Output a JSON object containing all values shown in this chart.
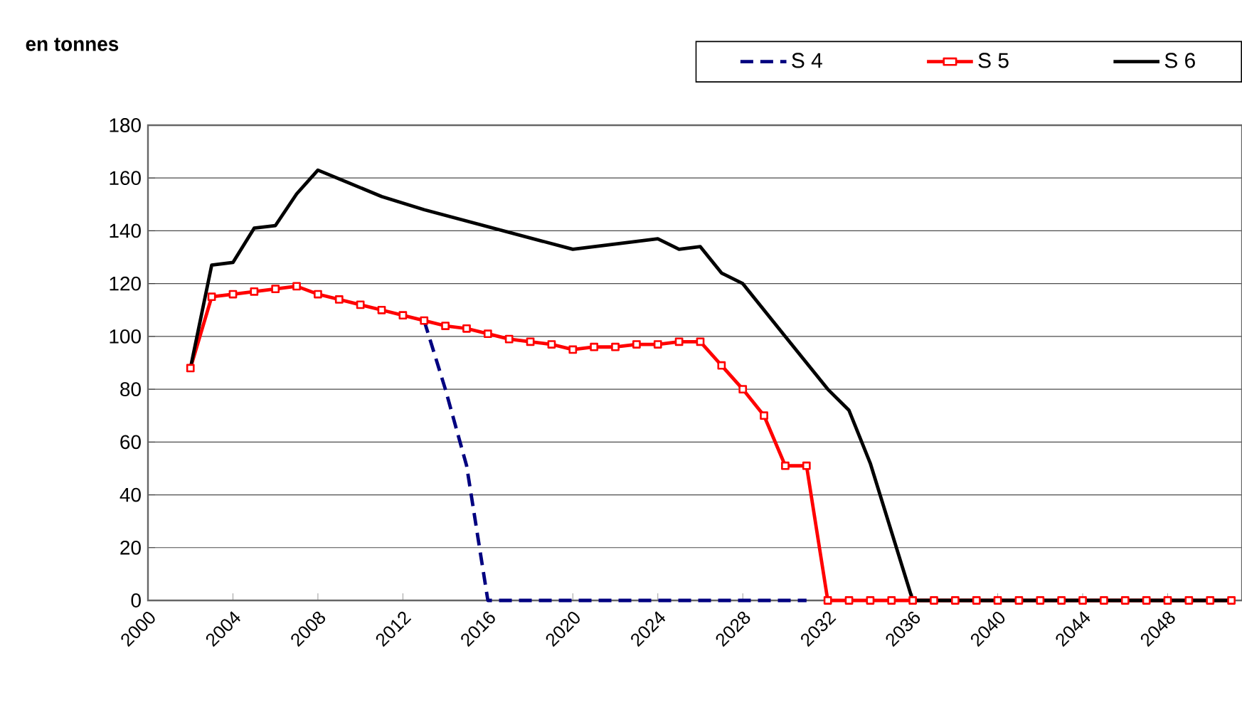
{
  "chart_data": {
    "type": "line",
    "ylabel": "en tonnes",
    "x": [
      2002,
      2003,
      2004,
      2005,
      2006,
      2007,
      2008,
      2009,
      2010,
      2011,
      2012,
      2013,
      2014,
      2015,
      2016,
      2017,
      2018,
      2019,
      2020,
      2021,
      2022,
      2023,
      2024,
      2025,
      2026,
      2027,
      2028,
      2029,
      2030,
      2031,
      2032,
      2033,
      2034,
      2035,
      2036,
      2037,
      2038,
      2039,
      2040,
      2041,
      2042,
      2043,
      2044,
      2045,
      2046,
      2047,
      2048,
      2049,
      2050,
      2051
    ],
    "series": [
      {
        "name": "S 4",
        "color": "#000080",
        "line_style": "dashed",
        "marker": "none",
        "values": [
          null,
          null,
          null,
          null,
          null,
          null,
          null,
          null,
          null,
          null,
          null,
          106,
          80,
          51,
          0,
          0,
          0,
          0,
          0,
          0,
          0,
          0,
          0,
          0,
          0,
          0,
          0,
          0,
          0,
          0,
          null,
          null,
          null,
          null,
          null,
          null,
          null,
          null,
          null,
          null,
          null,
          null,
          null,
          null,
          null,
          null,
          null,
          null,
          null,
          null
        ]
      },
      {
        "name": "S 5",
        "color": "#ff0000",
        "line_style": "solid",
        "marker": "square",
        "values": [
          88,
          115,
          116,
          117,
          118,
          119,
          116,
          114,
          112,
          110,
          108,
          106,
          104,
          103,
          101,
          99,
          98,
          97,
          95,
          96,
          96,
          97,
          97,
          98,
          98,
          89,
          80,
          70,
          51,
          51,
          0,
          0,
          0,
          0,
          0,
          0,
          0,
          0,
          0,
          0,
          0,
          0,
          0,
          0,
          0,
          0,
          0,
          0,
          0,
          0
        ]
      },
      {
        "name": "S 6",
        "color": "#000000",
        "line_style": "solid",
        "marker": "none",
        "x": [
          2002,
          2003,
          2004,
          2005,
          2006,
          2007,
          2008,
          2011,
          2013,
          2020,
          2024,
          2025,
          2026,
          2027,
          2028,
          2030,
          2032,
          2033,
          2034,
          2036,
          2051
        ],
        "values": [
          88,
          127,
          128,
          141,
          142,
          154,
          163,
          153,
          148,
          133,
          137,
          133,
          134,
          124,
          120,
          100,
          80,
          72,
          52,
          0,
          0
        ]
      }
    ],
    "xlim": [
      2000,
      2051.5
    ],
    "xticks": [
      2000,
      2004,
      2008,
      2012,
      2016,
      2020,
      2024,
      2028,
      2032,
      2036,
      2040,
      2044,
      2048
    ],
    "ylim": [
      0,
      180
    ],
    "yticks": [
      0,
      20,
      40,
      60,
      80,
      100,
      120,
      140,
      160,
      180
    ],
    "grid": "y",
    "legend": "top right"
  }
}
